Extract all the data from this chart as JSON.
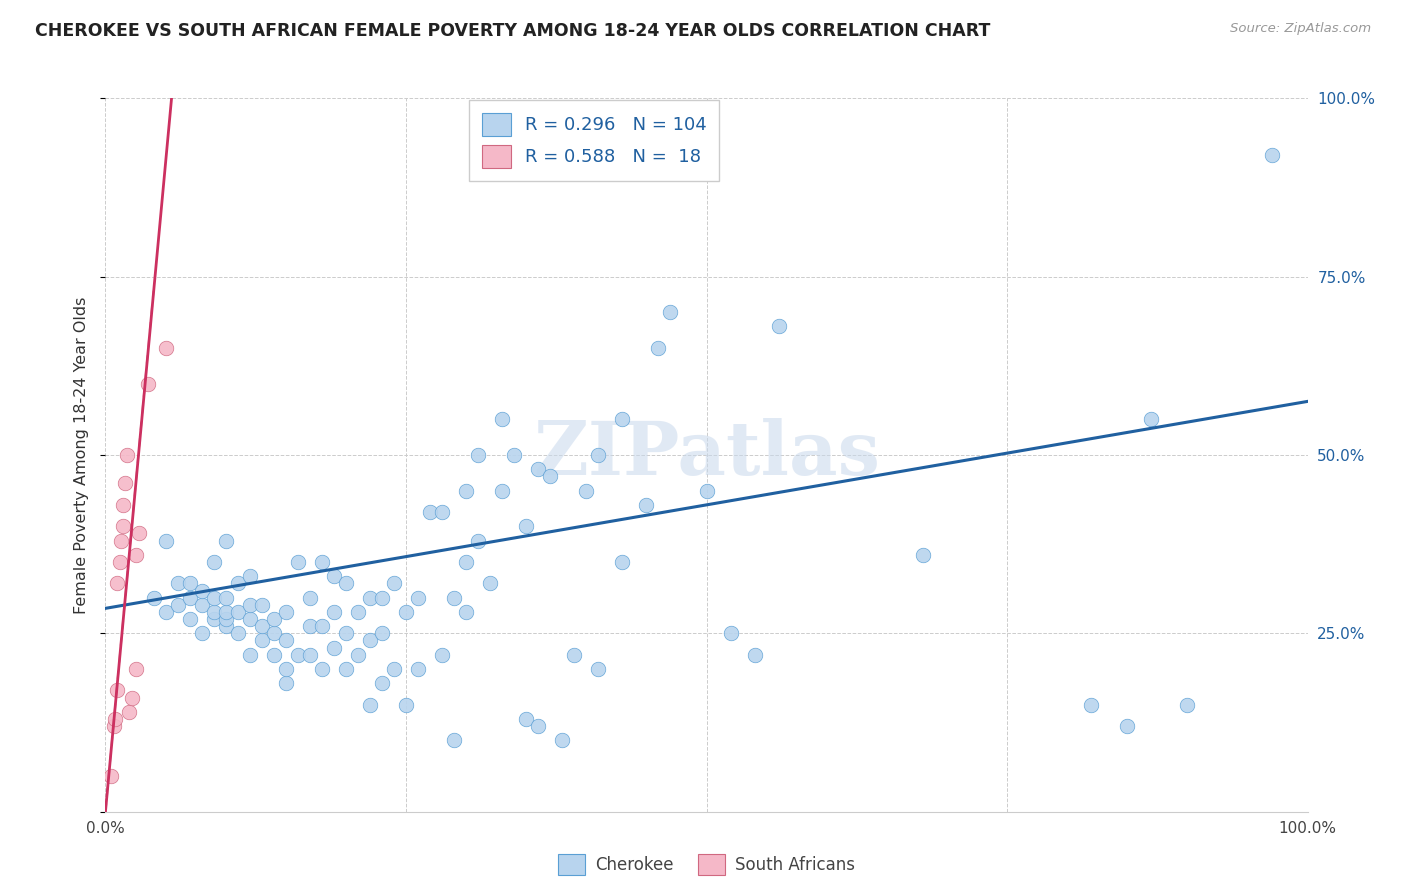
{
  "title": "CHEROKEE VS SOUTH AFRICAN FEMALE POVERTY AMONG 18-24 YEAR OLDS CORRELATION CHART",
  "source": "Source: ZipAtlas.com",
  "ylabel": "Female Poverty Among 18-24 Year Olds",
  "xlim": [
    0.0,
    1.0
  ],
  "ylim": [
    0.0,
    1.0
  ],
  "cherokee_color": "#b8d4ee",
  "cherokee_edge_color": "#5a9fd4",
  "cherokee_line_color": "#2060a0",
  "sa_color": "#f5b8c8",
  "sa_edge_color": "#d06880",
  "sa_line_color": "#cc3060",
  "tick_color": "#2060a0",
  "watermark_text": "ZIPatlas",
  "legend_r1": "0.296",
  "legend_n1": "104",
  "legend_r2": "0.588",
  "legend_n2": "18",
  "blue_line_x": [
    0.0,
    1.0
  ],
  "blue_line_y": [
    0.285,
    0.575
  ],
  "pink_line_x": [
    0.0,
    0.055
  ],
  "pink_line_y": [
    0.0,
    1.0
  ],
  "cherokee_x": [
    0.04,
    0.05,
    0.05,
    0.06,
    0.06,
    0.07,
    0.07,
    0.07,
    0.08,
    0.08,
    0.08,
    0.09,
    0.09,
    0.09,
    0.09,
    0.1,
    0.1,
    0.1,
    0.1,
    0.1,
    0.11,
    0.11,
    0.11,
    0.12,
    0.12,
    0.12,
    0.12,
    0.13,
    0.13,
    0.13,
    0.14,
    0.14,
    0.14,
    0.15,
    0.15,
    0.15,
    0.15,
    0.16,
    0.16,
    0.17,
    0.17,
    0.17,
    0.18,
    0.18,
    0.18,
    0.19,
    0.19,
    0.19,
    0.2,
    0.2,
    0.2,
    0.21,
    0.21,
    0.22,
    0.22,
    0.22,
    0.23,
    0.23,
    0.23,
    0.24,
    0.24,
    0.25,
    0.25,
    0.26,
    0.26,
    0.27,
    0.28,
    0.28,
    0.29,
    0.29,
    0.3,
    0.3,
    0.3,
    0.31,
    0.31,
    0.32,
    0.33,
    0.33,
    0.34,
    0.35,
    0.35,
    0.36,
    0.36,
    0.37,
    0.38,
    0.39,
    0.4,
    0.41,
    0.41,
    0.43,
    0.43,
    0.45,
    0.46,
    0.47,
    0.5,
    0.52,
    0.54,
    0.56,
    0.68,
    0.82,
    0.85,
    0.87,
    0.9,
    0.97
  ],
  "cherokee_y": [
    0.3,
    0.28,
    0.38,
    0.29,
    0.32,
    0.27,
    0.3,
    0.32,
    0.25,
    0.29,
    0.31,
    0.27,
    0.28,
    0.3,
    0.35,
    0.26,
    0.27,
    0.28,
    0.3,
    0.38,
    0.25,
    0.28,
    0.32,
    0.22,
    0.27,
    0.29,
    0.33,
    0.24,
    0.26,
    0.29,
    0.22,
    0.25,
    0.27,
    0.18,
    0.2,
    0.24,
    0.28,
    0.22,
    0.35,
    0.22,
    0.26,
    0.3,
    0.2,
    0.26,
    0.35,
    0.23,
    0.28,
    0.33,
    0.2,
    0.25,
    0.32,
    0.22,
    0.28,
    0.15,
    0.24,
    0.3,
    0.18,
    0.25,
    0.3,
    0.2,
    0.32,
    0.15,
    0.28,
    0.2,
    0.3,
    0.42,
    0.22,
    0.42,
    0.1,
    0.3,
    0.28,
    0.35,
    0.45,
    0.38,
    0.5,
    0.32,
    0.45,
    0.55,
    0.5,
    0.13,
    0.4,
    0.12,
    0.48,
    0.47,
    0.1,
    0.22,
    0.45,
    0.2,
    0.5,
    0.35,
    0.55,
    0.43,
    0.65,
    0.7,
    0.45,
    0.25,
    0.22,
    0.68,
    0.36,
    0.15,
    0.12,
    0.55,
    0.15,
    0.92
  ],
  "sa_x": [
    0.005,
    0.007,
    0.008,
    0.01,
    0.01,
    0.012,
    0.013,
    0.015,
    0.015,
    0.016,
    0.018,
    0.02,
    0.022,
    0.025,
    0.025,
    0.028,
    0.035,
    0.05
  ],
  "sa_y": [
    0.05,
    0.12,
    0.13,
    0.17,
    0.32,
    0.35,
    0.38,
    0.4,
    0.43,
    0.46,
    0.5,
    0.14,
    0.16,
    0.2,
    0.36,
    0.39,
    0.6,
    0.65
  ]
}
